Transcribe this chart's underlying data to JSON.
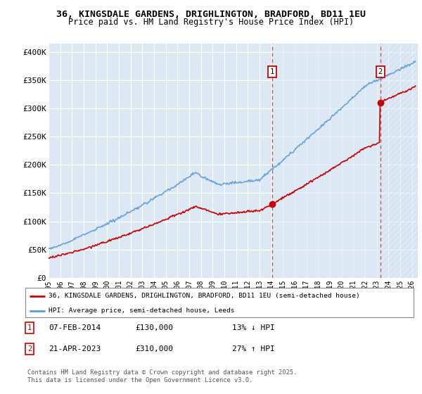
{
  "title": "36, KINGSDALE GARDENS, DRIGHLINGTON, BRADFORD, BD11 1EU",
  "subtitle": "Price paid vs. HM Land Registry's House Price Index (HPI)",
  "ylabel_ticks": [
    "£0",
    "£50K",
    "£100K",
    "£150K",
    "£200K",
    "£250K",
    "£300K",
    "£350K",
    "£400K"
  ],
  "ytick_values": [
    0,
    50000,
    100000,
    150000,
    200000,
    250000,
    300000,
    350000,
    400000
  ],
  "ylim": [
    0,
    415000
  ],
  "xlim_start": 1995.0,
  "xlim_end": 2026.5,
  "background_color": "#ffffff",
  "plot_bg_color": "#dce9f5",
  "plot_bg_color2": "#e8f1fb",
  "grid_color": "#ffffff",
  "hpi_color": "#5b9bd5",
  "price_color": "#cc0000",
  "marker1_date": 2014.1,
  "marker1_price": 130000,
  "marker2_date": 2023.3,
  "marker2_price": 310000,
  "legend_label1": "36, KINGSDALE GARDENS, DRIGHLINGTON, BRADFORD, BD11 1EU (semi-detached house)",
  "legend_label2": "HPI: Average price, semi-detached house, Leeds",
  "annotation1_label": "1",
  "annotation2_label": "2",
  "copyright_text": "Contains HM Land Registry data © Crown copyright and database right 2025.\nThis data is licensed under the Open Government Licence v3.0.",
  "xlabel_years": [
    1995,
    1996,
    1997,
    1998,
    1999,
    2000,
    2001,
    2002,
    2003,
    2004,
    2005,
    2006,
    2007,
    2008,
    2009,
    2010,
    2011,
    2012,
    2013,
    2014,
    2015,
    2016,
    2017,
    2018,
    2019,
    2020,
    2021,
    2022,
    2023,
    2024,
    2025,
    2026
  ],
  "note1_date": "07-FEB-2014",
  "note1_price": "£130,000",
  "note1_hpi": "13% ↓ HPI",
  "note2_date": "21-APR-2023",
  "note2_price": "£310,000",
  "note2_hpi": "27% ↑ HPI"
}
